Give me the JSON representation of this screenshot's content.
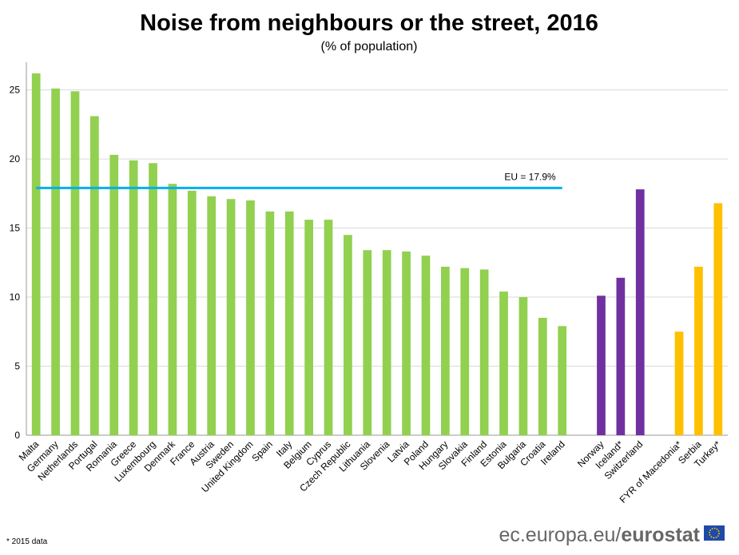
{
  "chart_data": {
    "type": "bar",
    "title": "Noise from neighbours or the street, 2016",
    "subtitle": "(% of population)",
    "categories": [
      "Malta",
      "Germany",
      "Netherlands",
      "Portugal",
      "Romania",
      "Greece",
      "Luxembourg",
      "Denmark",
      "France",
      "Austria",
      "Sweden",
      "United Kingdom",
      "Spain",
      "Italy",
      "Belgium",
      "Cyprus",
      "Czech Republic",
      "Lithuania",
      "Slovenia",
      "Latvia",
      "Poland",
      "Hungary",
      "Slovakia",
      "Finland",
      "Estonia",
      "Bulgaria",
      "Croatia",
      "Ireland",
      null,
      "Norway",
      "Iceland*",
      "Switzerland",
      null,
      "FYR of Macedonia*",
      "Serbia",
      "Turkey*"
    ],
    "values": [
      26.2,
      25.1,
      24.9,
      23.1,
      20.3,
      19.9,
      19.7,
      18.2,
      17.7,
      17.3,
      17.1,
      17.0,
      16.2,
      16.2,
      15.6,
      15.6,
      14.5,
      13.4,
      13.4,
      13.3,
      13.0,
      12.2,
      12.1,
      12.0,
      10.4,
      10.0,
      8.5,
      7.9,
      null,
      10.1,
      11.4,
      17.8,
      null,
      7.5,
      12.2,
      16.8
    ],
    "colors": [
      "#92d050",
      "#92d050",
      "#92d050",
      "#92d050",
      "#92d050",
      "#92d050",
      "#92d050",
      "#92d050",
      "#92d050",
      "#92d050",
      "#92d050",
      "#92d050",
      "#92d050",
      "#92d050",
      "#92d050",
      "#92d050",
      "#92d050",
      "#92d050",
      "#92d050",
      "#92d050",
      "#92d050",
      "#92d050",
      "#92d050",
      "#92d050",
      "#92d050",
      "#92d050",
      "#92d050",
      "#92d050",
      null,
      "#7030a0",
      "#7030a0",
      "#7030a0",
      null,
      "#ffc000",
      "#ffc000",
      "#ffc000"
    ],
    "ylim": [
      0,
      27
    ],
    "yticks": [
      0,
      5,
      10,
      15,
      20,
      25
    ],
    "grid": true,
    "reference_line": {
      "value": 17.9,
      "label": "EU = 17.9%",
      "color": "#00b0f0"
    },
    "footnote": "* 2015 data"
  },
  "footer": {
    "site": "ec.europa.eu/",
    "brand": "eurostat"
  }
}
